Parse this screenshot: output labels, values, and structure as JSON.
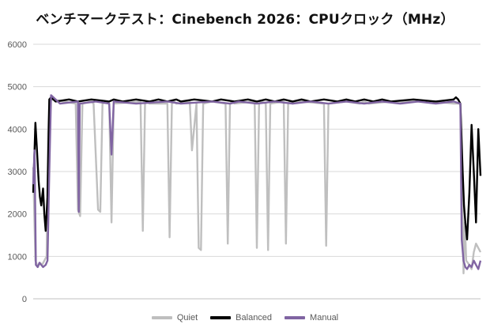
{
  "chart_data": {
    "type": "line",
    "title": "ベンチマークテスト：Cinebench 2026：CPUクロック（MHz）",
    "xlabel": "",
    "ylabel": "",
    "ylim": [
      0,
      6000
    ],
    "yticks": [
      0,
      1000,
      2000,
      3000,
      4000,
      5000,
      6000
    ],
    "grid": true,
    "legend_position": "bottom",
    "x_range": [
      0,
      1000
    ],
    "series": [
      {
        "name": "Quiet",
        "color": "#bfbfbf",
        "x": [
          0,
          5,
          10,
          15,
          20,
          30,
          33,
          36,
          40,
          70,
          95,
          100,
          105,
          110,
          130,
          135,
          145,
          150,
          155,
          165,
          170,
          175,
          180,
          240,
          245,
          250,
          255,
          260,
          300,
          305,
          310,
          315,
          320,
          350,
          355,
          365,
          370,
          375,
          380,
          400,
          430,
          435,
          440,
          445,
          450,
          495,
          500,
          505,
          510,
          520,
          525,
          530,
          560,
          565,
          570,
          575,
          580,
          600,
          650,
          655,
          660,
          700,
          730,
          740,
          750,
          800,
          900,
          940,
          955,
          958,
          962,
          965,
          968,
          975,
          980,
          985,
          990,
          1000
        ],
        "y": [
          3100,
          900,
          750,
          850,
          800,
          1000,
          3900,
          4650,
          4700,
          4650,
          4600,
          2100,
          1950,
          4600,
          4650,
          4600,
          2100,
          2050,
          4600,
          4650,
          4600,
          1800,
          4600,
          4650,
          1600,
          4600,
          4650,
          4600,
          4600,
          1450,
          4600,
          4650,
          4600,
          4650,
          3500,
          4600,
          1200,
          1150,
          4600,
          4650,
          4600,
          1300,
          4600,
          4650,
          4600,
          4650,
          1200,
          4600,
          4650,
          4600,
          1150,
          4600,
          4650,
          1300,
          4600,
          4650,
          4600,
          4650,
          4600,
          1250,
          4600,
          4650,
          4600,
          4650,
          4600,
          4650,
          4650,
          4600,
          4600,
          3400,
          600,
          1800,
          900,
          800,
          700,
          1100,
          1300,
          1100
        ]
      },
      {
        "name": "Balanced",
        "color": "#000000",
        "x": [
          0,
          5,
          8,
          12,
          15,
          18,
          22,
          25,
          28,
          32,
          36,
          40,
          50,
          80,
          100,
          130,
          170,
          180,
          200,
          230,
          260,
          280,
          300,
          320,
          330,
          360,
          400,
          420,
          450,
          480,
          500,
          520,
          540,
          560,
          580,
          600,
          620,
          650,
          680,
          700,
          720,
          740,
          760,
          780,
          800,
          850,
          900,
          940,
          945,
          950,
          955,
          960,
          963,
          966,
          970,
          975,
          980,
          985,
          990,
          995,
          1000
        ],
        "y": [
          2500,
          4150,
          3600,
          2800,
          2400,
          2200,
          2600,
          2000,
          1600,
          2400,
          4700,
          4750,
          4650,
          4700,
          4650,
          4700,
          4650,
          4700,
          4650,
          4700,
          4650,
          4700,
          4650,
          4700,
          4650,
          4700,
          4650,
          4700,
          4650,
          4700,
          4650,
          4700,
          4650,
          4700,
          4650,
          4700,
          4650,
          4700,
          4650,
          4700,
          4650,
          4700,
          4650,
          4700,
          4650,
          4700,
          4650,
          4700,
          4750,
          4700,
          4600,
          3000,
          2200,
          1800,
          1400,
          2500,
          4100,
          3000,
          1800,
          4000,
          2900
        ]
      },
      {
        "name": "Manual",
        "color": "#8064a2",
        "x": [
          0,
          3,
          6,
          10,
          14,
          18,
          22,
          28,
          32,
          36,
          40,
          60,
          100,
          102,
          104,
          140,
          170,
          175,
          180,
          230,
          300,
          330,
          400,
          440,
          460,
          500,
          540,
          580,
          620,
          660,
          700,
          740,
          780,
          820,
          860,
          900,
          940,
          955,
          958,
          962,
          966,
          970,
          975,
          980,
          985,
          990,
          995,
          1000
        ],
        "y": [
          2700,
          3500,
          800,
          750,
          850,
          800,
          750,
          800,
          900,
          3000,
          4800,
          4600,
          4650,
          2050,
          4600,
          4650,
          4600,
          3400,
          4650,
          4600,
          4650,
          4600,
          4650,
          4600,
          4650,
          4600,
          4650,
          4600,
          4650,
          4600,
          4650,
          4600,
          4650,
          4600,
          4650,
          4600,
          4650,
          4600,
          1400,
          900,
          750,
          700,
          800,
          750,
          900,
          800,
          700,
          900
        ]
      }
    ]
  }
}
